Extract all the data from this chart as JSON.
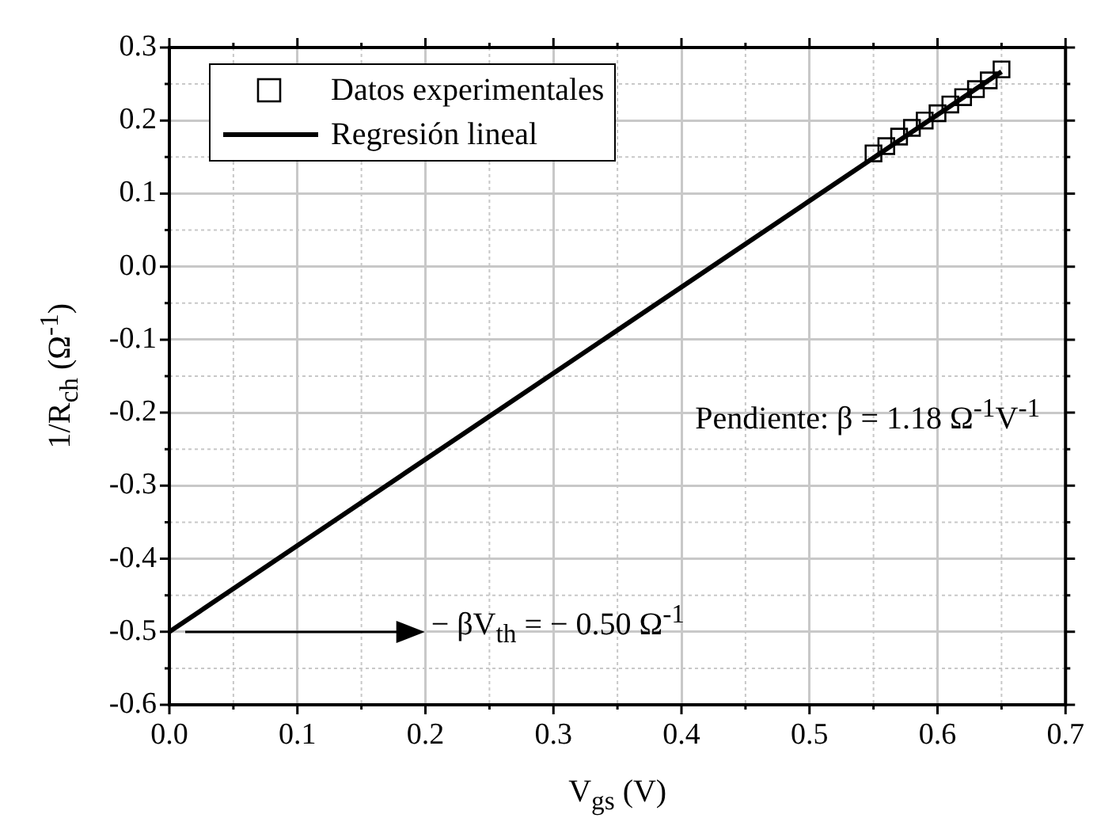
{
  "chart_data": {
    "type": "scatter",
    "xlabel": "V$_{gs}$ (V)",
    "ylabel": "1/R$_{ch}$ (Ω$^{-1}$)",
    "xlim": [
      0,
      0.7
    ],
    "xticks": [
      {
        "value": 0,
        "label": "0.0"
      },
      0.1,
      0.2,
      0.3,
      0.4,
      0.5,
      0.6,
      0.7
    ],
    "ylim": [
      -0.6,
      0.3
    ],
    "yticks": [
      -0.6,
      -0.5,
      -0.4,
      -0.3,
      -0.2,
      -0.1,
      {
        "value": 0,
        "label": "0.0"
      },
      0.1,
      0.2,
      0.3
    ],
    "grid": true,
    "legend": "top left",
    "series": [
      {
        "name": "Datos experimentales",
        "marker": "square",
        "color": "#000000",
        "x": [
          0.55,
          0.56,
          0.57,
          0.58,
          0.59,
          0.6,
          0.61,
          0.62,
          0.63,
          0.64,
          0.65
        ],
        "values": [
          0.155,
          0.165,
          0.178,
          0.19,
          0.2,
          0.21,
          0.222,
          0.232,
          0.243,
          0.255,
          0.27
        ]
      },
      {
        "name": "Regresión lineal",
        "type": "line",
        "color": "#000000",
        "x": [
          0,
          0.65
        ],
        "values": [
          -0.5,
          0.267
        ]
      }
    ],
    "annotations": [
      "Pendiente: β = 1.18 Ω$^{-1}$V$^{-1}$",
      "− βV$_{th}$ = − 0.50 Ω$^{-1}$"
    ]
  }
}
